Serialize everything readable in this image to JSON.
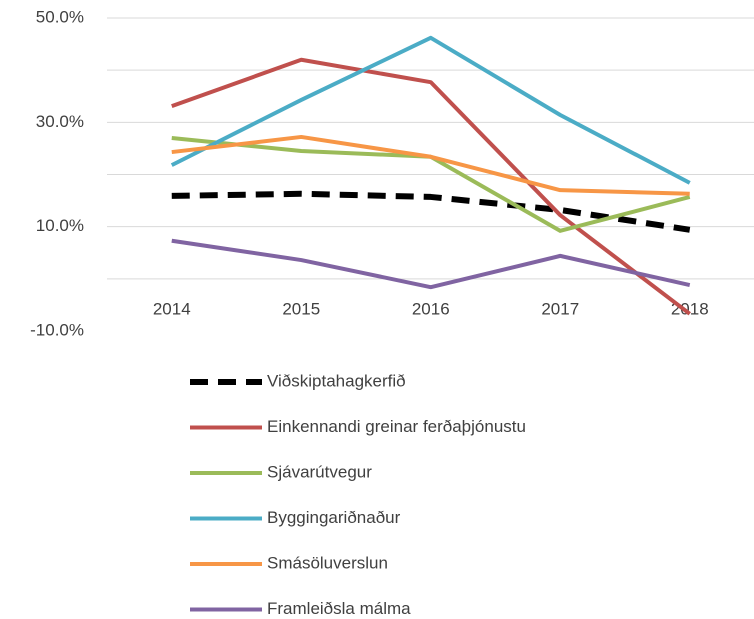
{
  "chart_data": {
    "type": "line",
    "categories": [
      "2014",
      "2015",
      "2016",
      "2017",
      "2018"
    ],
    "series": [
      {
        "name": "Viðskiptahagkerfið",
        "color": "#000000",
        "dashed": true,
        "values": [
          15.9,
          16.3,
          15.7,
          13.2,
          9.4
        ]
      },
      {
        "name": "Einkennandi greinar ferðaþjónustu",
        "color": "#c0504d",
        "values": [
          33.1,
          42.0,
          37.7,
          12.2,
          -6.7
        ]
      },
      {
        "name": "Sjávarútvegur",
        "color": "#9bbb59",
        "values": [
          27.0,
          24.5,
          23.4,
          9.2,
          15.7
        ]
      },
      {
        "name": "Byggingariðnaður",
        "color": "#4bacc6",
        "values": [
          21.8,
          34.3,
          46.2,
          31.4,
          18.4
        ]
      },
      {
        "name": "Smásöluverslun",
        "color": "#f79646",
        "values": [
          24.3,
          27.2,
          23.4,
          17.0,
          16.3
        ]
      },
      {
        "name": "Framleiðsla málma",
        "color": "#8064a2",
        "values": [
          7.3,
          3.6,
          -1.6,
          4.4,
          -1.2
        ]
      }
    ],
    "ylim": [
      -10,
      50
    ],
    "yticks": [
      {
        "value": 50,
        "label": "50.0%"
      },
      {
        "value": 30,
        "label": "30.0%"
      },
      {
        "value": 10,
        "label": "10.0%"
      },
      {
        "value": -10,
        "label": "-10.0%"
      }
    ],
    "ygrid": [
      50,
      40,
      30,
      20,
      10
    ],
    "legend": "bottom"
  }
}
